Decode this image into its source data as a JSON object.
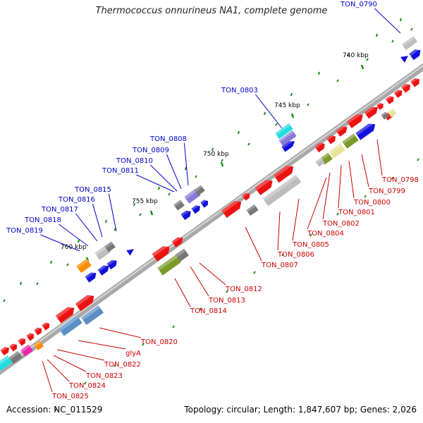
{
  "title": "Thermococcus onnurineus NA1, complete genome",
  "accession_text": "Accession: NC_011529",
  "summary_text": "Topology: circular; Length: 1,847,607 bp; Genes: 2,026",
  "colors": {
    "blue_label": "#0000cc",
    "red_label": "#cc0000",
    "backbone": "#8c8c8c",
    "tick": "#1a8a1a",
    "gene_red": "#ee1111",
    "gene_blue": "#1111dd",
    "gene_gray": "#777777",
    "gene_lightgray": "#bdbdbd",
    "gene_olive": "#7a9a2a",
    "gene_steelblue": "#5b8fc4",
    "gene_cyan": "#22dddd",
    "gene_magenta": "#ee22aa",
    "gene_orange": "#ff8c00",
    "gene_purple": "#8a7ad8",
    "gene_khaki": "#e8e49a"
  },
  "scale_labels": [
    "740 kbp",
    "745 kbp",
    "750 kbp",
    "755 kbp",
    "760 kbp"
  ],
  "labels_top": [
    "TON_0790",
    "TON_0803",
    "TON_0808",
    "TON_0809",
    "TON_0810",
    "TON_0811",
    "TON_0815",
    "TON_0816",
    "TON_0817",
    "TON_0818",
    "TON_0819"
  ],
  "labels_bottom": [
    "TON_0798",
    "TON_0799",
    "TON_0800",
    "TON_0801",
    "TON_0802",
    "TON_0804",
    "TON_0805",
    "TON_0806",
    "TON_0807",
    "TON_0812",
    "TON_0813",
    "TON_0814",
    "TON_0820",
    "glyA",
    "TON_0822",
    "TON_0823",
    "TON_0824",
    "TON_0825"
  ]
}
